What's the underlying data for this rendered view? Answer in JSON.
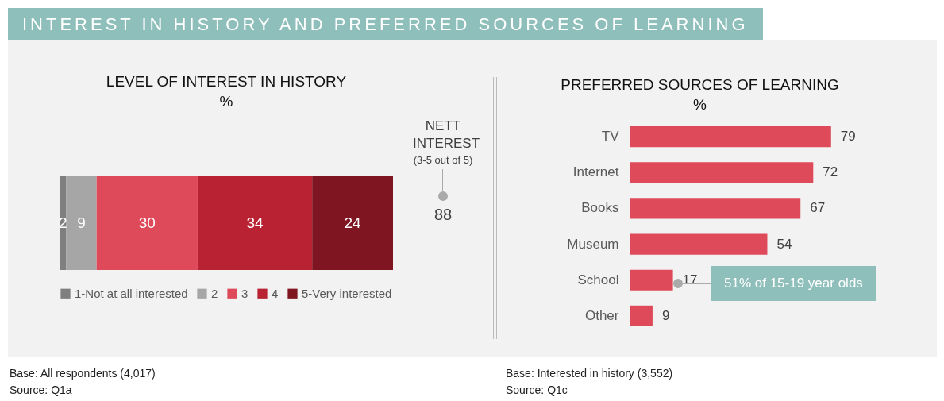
{
  "chart_data": [
    {
      "type": "bar",
      "orientation": "horizontal",
      "stacked": true,
      "title": "LEVEL OF INTEREST IN HISTORY",
      "subtitle": "%",
      "categories": [
        null
      ],
      "series": [
        {
          "name": "1-Not at all interested",
          "color": "#7f7f7f",
          "values": [
            2
          ]
        },
        {
          "name": "2",
          "color": "#a6a6a6",
          "values": [
            9
          ]
        },
        {
          "name": "3",
          "color": "#de4a5a",
          "values": [
            30
          ]
        },
        {
          "name": "4",
          "color": "#b82233",
          "values": [
            34
          ]
        },
        {
          "name": "5-Very interested",
          "color": "#7e1520",
          "values": [
            24
          ]
        }
      ],
      "xlim": [
        0,
        99
      ],
      "data_labels": true,
      "legend": "bottom",
      "tick_labels": false,
      "annotations": [
        "INTEREST IN HISTORY AND PREFERRED SOURCES OF LEARNING",
        "NETT INTEREST",
        "(3-5 out of 5)",
        "88",
        "Base: All respondents (4,017)",
        "Source: Q1a"
      ]
    },
    {
      "type": "bar",
      "orientation": "horizontal",
      "title": "PREFERRED SOURCES OF LEARNING",
      "subtitle": "%",
      "categories": [
        "TV",
        "Internet",
        "Books",
        "Museum",
        "School",
        "Other"
      ],
      "values": [
        79,
        72,
        67,
        54,
        17,
        9
      ],
      "color": "#de4a5a",
      "data_labels": true,
      "tick_labels": "y",
      "annotations": [
        "51% of 15-19 year olds",
        "Base: Interested in history (3,552)",
        "Source: Q1c"
      ]
    }
  ]
}
